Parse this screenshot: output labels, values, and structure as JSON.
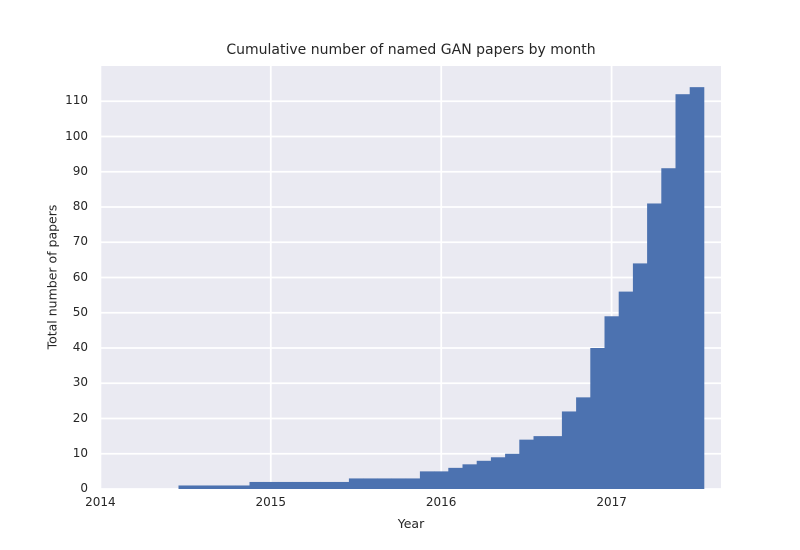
{
  "chart_data": {
    "type": "bar",
    "subtype": "cumulative-histogram",
    "title": "Cumulative number of named GAN papers by month",
    "xlabel": "Year",
    "ylabel": "Total number of papers",
    "xticks": [
      2014,
      2015,
      2016,
      2017
    ],
    "yticks": [
      0,
      10,
      20,
      30,
      40,
      50,
      60,
      70,
      80,
      90,
      100,
      110
    ],
    "xlim": [
      2014.0,
      2017.65
    ],
    "ylim": [
      0,
      120
    ],
    "grid": true,
    "legend": false,
    "colors": {
      "bar": "#4c72b0",
      "plot_background": "#eaeaf2",
      "grid_line": "#ffffff",
      "figure_background": "#ffffff",
      "text": "#262626"
    },
    "series": [
      {
        "month": "2014-07",
        "cumulative": 1
      },
      {
        "month": "2014-08",
        "cumulative": 1
      },
      {
        "month": "2014-09",
        "cumulative": 1
      },
      {
        "month": "2014-10",
        "cumulative": 1
      },
      {
        "month": "2014-11",
        "cumulative": 1
      },
      {
        "month": "2014-12",
        "cumulative": 2
      },
      {
        "month": "2015-01",
        "cumulative": 2
      },
      {
        "month": "2015-02",
        "cumulative": 2
      },
      {
        "month": "2015-03",
        "cumulative": 2
      },
      {
        "month": "2015-04",
        "cumulative": 2
      },
      {
        "month": "2015-05",
        "cumulative": 2
      },
      {
        "month": "2015-06",
        "cumulative": 2
      },
      {
        "month": "2015-07",
        "cumulative": 3
      },
      {
        "month": "2015-08",
        "cumulative": 3
      },
      {
        "month": "2015-09",
        "cumulative": 3
      },
      {
        "month": "2015-10",
        "cumulative": 3
      },
      {
        "month": "2015-11",
        "cumulative": 3
      },
      {
        "month": "2015-12",
        "cumulative": 5
      },
      {
        "month": "2016-01",
        "cumulative": 5
      },
      {
        "month": "2016-02",
        "cumulative": 6
      },
      {
        "month": "2016-03",
        "cumulative": 7
      },
      {
        "month": "2016-04",
        "cumulative": 8
      },
      {
        "month": "2016-05",
        "cumulative": 9
      },
      {
        "month": "2016-06",
        "cumulative": 10
      },
      {
        "month": "2016-07",
        "cumulative": 14
      },
      {
        "month": "2016-08",
        "cumulative": 15
      },
      {
        "month": "2016-09",
        "cumulative": 15
      },
      {
        "month": "2016-10",
        "cumulative": 22
      },
      {
        "month": "2016-11",
        "cumulative": 26
      },
      {
        "month": "2016-12",
        "cumulative": 40
      },
      {
        "month": "2017-01",
        "cumulative": 49
      },
      {
        "month": "2017-02",
        "cumulative": 56
      },
      {
        "month": "2017-03",
        "cumulative": 64
      },
      {
        "month": "2017-04",
        "cumulative": 81
      },
      {
        "month": "2017-05",
        "cumulative": 91
      },
      {
        "month": "2017-06",
        "cumulative": 112
      },
      {
        "month": "2017-07",
        "cumulative": 114
      }
    ]
  }
}
